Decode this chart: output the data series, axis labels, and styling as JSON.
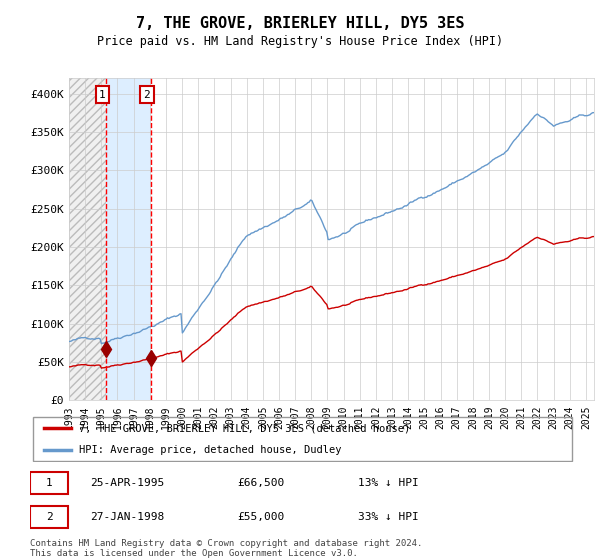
{
  "title": "7, THE GROVE, BRIERLEY HILL, DY5 3ES",
  "subtitle": "Price paid vs. HM Land Registry's House Price Index (HPI)",
  "legend_line1": "7, THE GROVE, BRIERLEY HILL, DY5 3ES (detached house)",
  "legend_line2": "HPI: Average price, detached house, Dudley",
  "footer": "Contains HM Land Registry data © Crown copyright and database right 2024.\nThis data is licensed under the Open Government Licence v3.0.",
  "sale1_date": "25-APR-1995",
  "sale1_price": 66500,
  "sale1_hpi": "13% ↓ HPI",
  "sale2_date": "27-JAN-1998",
  "sale2_price": 55000,
  "sale2_hpi": "33% ↓ HPI",
  "sale1_x": 1995.32,
  "sale2_x": 1998.07,
  "highlight_color": "#ddeeff",
  "red_line_color": "#cc0000",
  "blue_line_color": "#6699cc",
  "grid_color": "#cccccc",
  "ylim": [
    0,
    420000
  ],
  "xlim_start": 1993.0,
  "xlim_end": 2025.5,
  "yticks": [
    0,
    50000,
    100000,
    150000,
    200000,
    250000,
    300000,
    350000,
    400000
  ],
  "ytick_labels": [
    "£0",
    "£50K",
    "£100K",
    "£150K",
    "£200K",
    "£250K",
    "£300K",
    "£350K",
    "£400K"
  ],
  "xtick_years": [
    1993,
    1994,
    1995,
    1996,
    1997,
    1998,
    1999,
    2000,
    2001,
    2002,
    2003,
    2004,
    2005,
    2006,
    2007,
    2008,
    2009,
    2010,
    2011,
    2012,
    2013,
    2014,
    2015,
    2016,
    2017,
    2018,
    2019,
    2020,
    2021,
    2022,
    2023,
    2024,
    2025
  ]
}
